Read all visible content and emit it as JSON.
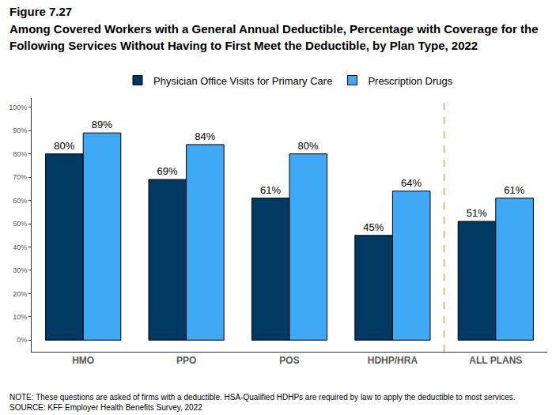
{
  "chart_data": {
    "type": "bar",
    "title": "Figure 7.27",
    "subtitle": "Among Covered Workers with a General Annual Deductible, Percentage with Coverage for the Following Services Without Having to First Meet the Deductible, by Plan Type, 2022",
    "notes": [
      "NOTE: These questions are asked of firms with a deductible. HSA-Qualified HDHPs are required by law to apply the deductible to most services.",
      "SOURCE: KFF Employer Health Benefits Survey, 2022"
    ],
    "categories": [
      "HMO",
      "PPO",
      "POS",
      "HDHP/HRA",
      "ALL PLANS"
    ],
    "series": [
      {
        "name": "Physician Office Visits for Primary Care",
        "color": "#003a63",
        "values": [
          80,
          69,
          61,
          45,
          51
        ],
        "value_labels": [
          "80%",
          "69%",
          "61%",
          "45%",
          "51%"
        ]
      },
      {
        "name": "Prescription Drugs",
        "color": "#3fa9f5",
        "values": [
          89,
          84,
          80,
          64,
          61
        ],
        "value_labels": [
          "89%",
          "84%",
          "80%",
          "64%",
          "61%"
        ]
      }
    ],
    "ylim": [
      -5,
      104
    ],
    "yticks": [
      {
        "value": 0,
        "label": "0%"
      },
      {
        "value": 10,
        "label": "10%"
      },
      {
        "value": 20,
        "label": "20%"
      },
      {
        "value": 30,
        "label": "30%"
      },
      {
        "value": 40,
        "label": "40%"
      },
      {
        "value": 50,
        "label": "50%"
      },
      {
        "value": 60,
        "label": "60%"
      },
      {
        "value": 70,
        "label": "70%"
      },
      {
        "value": 80,
        "label": "80%"
      },
      {
        "value": 90,
        "label": "90%"
      },
      {
        "value": 100,
        "label": "100%"
      }
    ],
    "grid": false,
    "data_labels": true,
    "legend": "top"
  }
}
